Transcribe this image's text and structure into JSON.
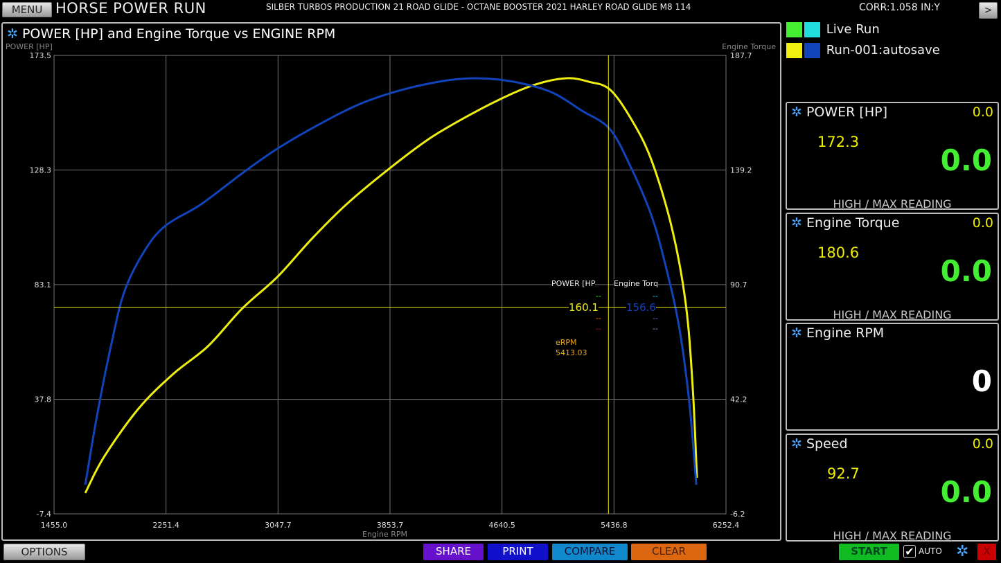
{
  "header": {
    "menu_label": "MENU",
    "app_title": "HORSE POWER RUN",
    "run_description": "SILBER TURBOS PRODUCTION 21 ROAD GLIDE - OCTANE BOOSTER 2021 HARLEY ROAD GLIDE M8 114",
    "correction": "CORR:1.058 IN:Y",
    "next_label": ">"
  },
  "legend": [
    {
      "label": "Live Run",
      "colors": [
        "#44ee33",
        "#22dddd"
      ]
    },
    {
      "label": "Run-001:autosave",
      "colors": [
        "#eeee11",
        "#1144bb"
      ]
    }
  ],
  "chart_data": {
    "type": "line",
    "title": "POWER [HP] and Engine Torque vs ENGINE RPM",
    "xlabel": "Engine RPM",
    "ylabel": "POWER [HP]",
    "y2label": "Engine Torque",
    "xlim": [
      1455.0,
      6252.4
    ],
    "ylim": [
      -7.4,
      173.5
    ],
    "y2lim": [
      -6.2,
      187.7
    ],
    "xticks": [
      "1455.0",
      "2251.4",
      "3047.7",
      "3853.7",
      "4640.5",
      "5436.8",
      "6252.4"
    ],
    "yticks": [
      "173.5",
      "128.3",
      "83.1",
      "37.8",
      "-7.4"
    ],
    "y2ticks": [
      "187.7",
      "139.2",
      "90.7",
      "42.2",
      "-6.2"
    ],
    "grid": true,
    "series": [
      {
        "name": "POWER [HP]",
        "axis": "left",
        "color": "#eeee11",
        "x": [
          1678,
          1811,
          2058,
          2306,
          2553,
          2800,
          3048,
          3295,
          3542,
          3839,
          4136,
          4432,
          4729,
          4927,
          5125,
          5273,
          5422,
          5570,
          5718,
          5867,
          5966,
          6015,
          6045
        ],
        "y": [
          0.8,
          15.0,
          34.1,
          47.8,
          58.7,
          73.7,
          86.0,
          101.1,
          114.7,
          128.4,
          140.7,
          150.3,
          158.5,
          162.6,
          164.5,
          163.1,
          160.1,
          148.9,
          132.5,
          105.2,
          75.1,
          42.3,
          6.8
        ]
      },
      {
        "name": "Engine Torque",
        "axis": "right",
        "color": "#1144bb",
        "x": [
          1678,
          1762,
          1861,
          1959,
          2108,
          2256,
          2504,
          2800,
          3048,
          3344,
          3641,
          3938,
          4235,
          4432,
          4630,
          4828,
          5026,
          5224,
          5422,
          5570,
          5718,
          5817,
          5916,
          5990,
          6040
        ],
        "y": [
          6.1,
          35.4,
          64.7,
          88.1,
          105.7,
          115.9,
          124.7,
          137.9,
          148.2,
          158.4,
          167.2,
          173.1,
          176.9,
          178.0,
          177.5,
          175.4,
          171.6,
          164.3,
          156.6,
          140.8,
          120.3,
          99.8,
          73.5,
          41.2,
          6.1
        ]
      }
    ],
    "cursor": {
      "rpm_label": "eRPM",
      "rpm": "5413.03",
      "col1_header": "POWER [HP",
      "col2_header": "Engine Torq",
      "col1_value": "160.1",
      "col2_value": "156.6",
      "placeholder": "--"
    }
  },
  "panels": [
    {
      "title": "POWER [HP]",
      "current": "0.0",
      "high": "172.3",
      "big": "0.0",
      "footer": "HIGH / MAX READING"
    },
    {
      "title": "Engine Torque",
      "current": "0.0",
      "high": "180.6",
      "big": "0.0",
      "footer": "HIGH / MAX READING"
    },
    {
      "title": "Engine RPM",
      "current": "",
      "high": "",
      "big": "0",
      "footer": ""
    },
    {
      "title": "Speed",
      "current": "0.0",
      "high": "92.7",
      "big": "0.0",
      "footer": "HIGH / MAX READING"
    }
  ],
  "footer": {
    "options": "OPTIONS",
    "share": "SHARE",
    "print": "PRINT",
    "compare": "COMPARE",
    "clear": "CLEAR",
    "start": "START",
    "auto": "AUTO",
    "auto_checked": true,
    "close": "X"
  }
}
